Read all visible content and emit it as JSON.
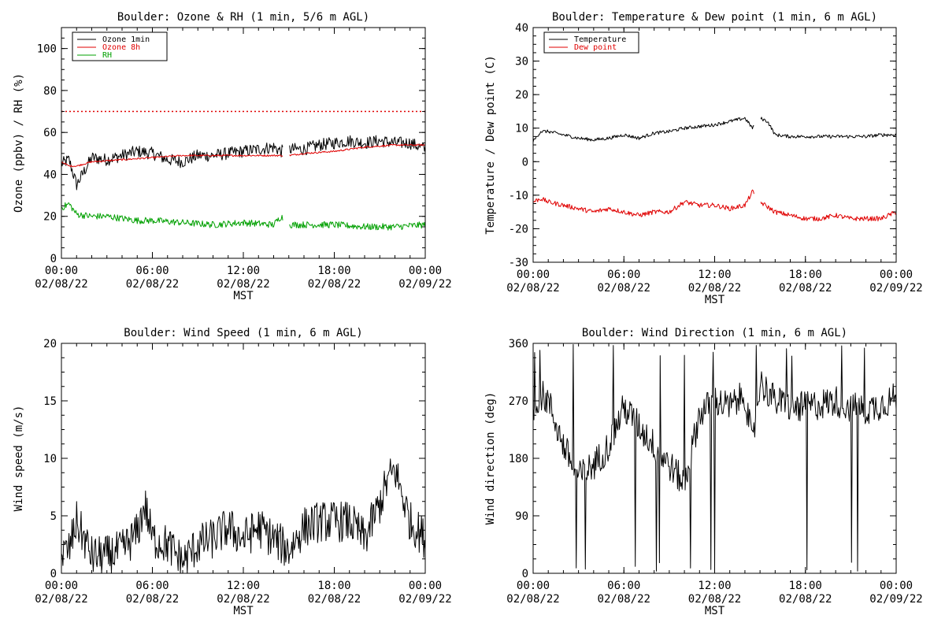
{
  "colors": {
    "black": "#000000",
    "red": "#e00000",
    "green": "#00a000",
    "background": "#ffffff"
  },
  "chart_data": [
    {
      "type": "line",
      "title": "Boulder: Ozone & RH (1 min, 5/6 m AGL)",
      "ylabel": "Ozone (ppbv) / RH (%)",
      "xlabel": "MST",
      "ylim": [
        0,
        110
      ],
      "yticks": [
        0,
        20,
        40,
        60,
        80,
        100
      ],
      "xticks": [
        {
          "time": "00:00",
          "date": "02/08/22"
        },
        {
          "time": "06:00",
          "date": "02/08/22"
        },
        {
          "time": "12:00",
          "date": "02/08/22"
        },
        {
          "time": "18:00",
          "date": "02/08/22"
        },
        {
          "time": "00:00",
          "date": "02/09/22"
        }
      ],
      "xlim": [
        "2022-02-08 00:00",
        "2022-02-09 00:00"
      ],
      "reference_line": {
        "value": 70,
        "color": "#e00000",
        "style": "dotted"
      },
      "legend": {
        "placement": "top-left",
        "entries": [
          {
            "name": "Ozone 1min",
            "color": "#000000"
          },
          {
            "name": "Ozone 8h",
            "color": "#e00000"
          },
          {
            "name": "RH",
            "color": "#00a000"
          }
        ]
      },
      "series": [
        {
          "name": "Ozone 1min",
          "color": "#000000",
          "x": [
            0,
            0.5,
            1,
            2,
            3,
            4,
            5,
            6,
            7,
            8,
            9,
            10,
            11,
            12,
            13,
            14,
            14.5,
            15,
            16,
            17,
            18,
            19,
            20,
            21,
            22,
            23,
            24
          ],
          "values": [
            45,
            47,
            35,
            48,
            47,
            49,
            51,
            50,
            47,
            46,
            49,
            49,
            50,
            51,
            52,
            53,
            51,
            52,
            52,
            54,
            55,
            56,
            55,
            56,
            55,
            55,
            52
          ],
          "noise": 3
        },
        {
          "name": "Ozone 8h",
          "color": "#e00000",
          "x": [
            0,
            0.5,
            1,
            2,
            4,
            6,
            8,
            10,
            12,
            14,
            14.5,
            15,
            16,
            18,
            20,
            22,
            24
          ],
          "values": [
            46,
            44,
            44,
            46,
            47,
            48,
            49,
            49,
            49,
            49,
            49,
            49,
            50,
            51,
            53,
            54,
            54
          ],
          "noise": 0.4
        },
        {
          "name": "RH",
          "color": "#00a000",
          "x": [
            0,
            0.5,
            1,
            2,
            3,
            4,
            5,
            6,
            8,
            10,
            12,
            14,
            14.5,
            15,
            16,
            18,
            20,
            22,
            24
          ],
          "values": [
            24,
            26,
            21,
            20,
            20,
            19,
            18,
            18,
            17,
            16,
            17,
            16,
            20,
            16,
            16,
            16,
            15,
            15,
            16
          ],
          "noise": 1.6
        }
      ],
      "gap": [
        14.6,
        15.05
      ]
    },
    {
      "type": "line",
      "title": "Boulder: Temperature & Dew point (1 min, 6 m AGL)",
      "ylabel": "Temperature / Dew point (C)",
      "xlabel": "MST",
      "ylim": [
        -30,
        40
      ],
      "yticks": [
        -30,
        -20,
        -10,
        0,
        10,
        20,
        30,
        40
      ],
      "xticks": [
        {
          "time": "00:00",
          "date": "02/08/22"
        },
        {
          "time": "06:00",
          "date": "02/08/22"
        },
        {
          "time": "12:00",
          "date": "02/08/22"
        },
        {
          "time": "18:00",
          "date": "02/08/22"
        },
        {
          "time": "00:00",
          "date": "02/09/22"
        }
      ],
      "xlim": [
        "2022-02-08 00:00",
        "2022-02-09 00:00"
      ],
      "legend": {
        "placement": "top-left",
        "entries": [
          {
            "name": "Temperature",
            "color": "#000000"
          },
          {
            "name": "Dew point",
            "color": "#e00000"
          }
        ]
      },
      "series": [
        {
          "name": "Temperature",
          "color": "#000000",
          "x": [
            0,
            0.5,
            1,
            2,
            3,
            4,
            5,
            6,
            7,
            8,
            9,
            10,
            11,
            12,
            13,
            14,
            14.5,
            15,
            15.5,
            16,
            17,
            18,
            19,
            20,
            21,
            22,
            23,
            24
          ],
          "values": [
            6,
            9,
            9,
            8,
            7,
            6.5,
            7,
            8,
            7,
            8.5,
            9,
            10,
            10.5,
            11,
            12,
            13,
            10,
            13,
            12,
            8,
            7.5,
            7.5,
            7.5,
            7.5,
            7.5,
            7.5,
            8,
            8
          ],
          "noise": 0.5
        },
        {
          "name": "Dew point",
          "color": "#e00000",
          "x": [
            0,
            0.5,
            1,
            2,
            3,
            4,
            5,
            6,
            7,
            8,
            9,
            10,
            11,
            12,
            13,
            14,
            14.5,
            15,
            16,
            17,
            18,
            19,
            20,
            21,
            22,
            23,
            24
          ],
          "values": [
            -12,
            -11,
            -12,
            -13,
            -14,
            -15,
            -14,
            -15,
            -16,
            -15,
            -15,
            -12,
            -13,
            -13,
            -14,
            -13,
            -9,
            -12,
            -15,
            -16,
            -17,
            -17,
            -16,
            -17,
            -17,
            -17,
            -15
          ],
          "noise": 0.7
        }
      ],
      "gap": [
        14.6,
        15.05
      ]
    },
    {
      "type": "line",
      "title": "Boulder: Wind Speed (1 min, 6 m AGL)",
      "ylabel": "Wind speed (m/s)",
      "xlabel": "MST",
      "ylim": [
        0,
        20
      ],
      "yticks": [
        0,
        5,
        10,
        15,
        20
      ],
      "xticks": [
        {
          "time": "00:00",
          "date": "02/08/22"
        },
        {
          "time": "06:00",
          "date": "02/08/22"
        },
        {
          "time": "12:00",
          "date": "02/08/22"
        },
        {
          "time": "18:00",
          "date": "02/08/22"
        },
        {
          "time": "00:00",
          "date": "02/09/22"
        }
      ],
      "xlim": [
        "2022-02-08 00:00",
        "2022-02-09 00:00"
      ],
      "series": [
        {
          "name": "",
          "color": "#000000",
          "x": [
            0,
            0.5,
            1,
            2,
            3,
            4,
            5,
            5.5,
            6,
            7,
            8,
            9,
            10,
            11,
            12,
            13,
            14,
            14.5,
            15,
            16,
            17,
            18,
            19,
            20,
            21,
            21.5,
            22,
            23,
            24
          ],
          "values": [
            1.5,
            2,
            4.5,
            1.5,
            1.5,
            2,
            3.5,
            6,
            3,
            2.5,
            1,
            2.5,
            3,
            4,
            3,
            4,
            3,
            2.5,
            2,
            4,
            4.5,
            4.5,
            4.5,
            3,
            6,
            8,
            9,
            4.5,
            3
          ],
          "noise": 1.8
        }
      ]
    },
    {
      "type": "line",
      "title": "Boulder: Wind Direction (1 min, 6 m AGL)",
      "ylabel": "Wind direction (deg)",
      "xlabel": "MST",
      "ylim": [
        0,
        360
      ],
      "yticks": [
        0,
        90,
        180,
        270,
        360
      ],
      "xticks": [
        {
          "time": "00:00",
          "date": "02/08/22"
        },
        {
          "time": "06:00",
          "date": "02/08/22"
        },
        {
          "time": "12:00",
          "date": "02/08/22"
        },
        {
          "time": "18:00",
          "date": "02/08/22"
        },
        {
          "time": "00:00",
          "date": "02/09/22"
        }
      ],
      "xlim": [
        "2022-02-08 00:00",
        "2022-02-09 00:00"
      ],
      "series": [
        {
          "name": "",
          "color": "#000000",
          "x": [
            0,
            0.5,
            1,
            2,
            3,
            4,
            5,
            6,
            7,
            8,
            9,
            10,
            11,
            12,
            13,
            14,
            14.5,
            15,
            16,
            17,
            18,
            19,
            20,
            21,
            22,
            23,
            24
          ],
          "values": [
            260,
            280,
            270,
            200,
            150,
            170,
            200,
            260,
            230,
            200,
            170,
            140,
            250,
            270,
            260,
            280,
            200,
            300,
            270,
            260,
            260,
            265,
            270,
            260,
            255,
            265,
            275
          ],
          "noise": 25,
          "spikes": 0.05
        }
      ]
    }
  ]
}
